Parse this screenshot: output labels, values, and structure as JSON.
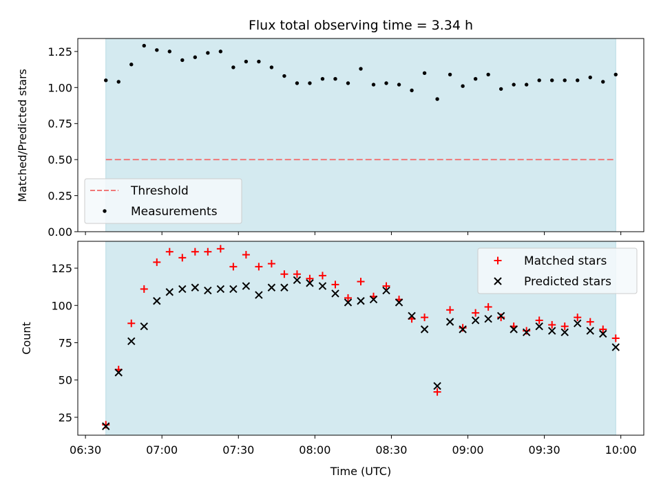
{
  "figure": {
    "title": "Flux total observing time = 3.34 h",
    "xlabel": "Time (UTC)",
    "x_ticks": [
      "06:30",
      "07:00",
      "07:30",
      "08:00",
      "08:30",
      "09:00",
      "09:30",
      "10:00"
    ]
  },
  "colors": {
    "span": "#d4eaf0",
    "threshold": "#f07878",
    "measurement": "#000000",
    "matched": "#ff0000",
    "predicted": "#000000"
  },
  "chart_data": [
    {
      "type": "scatter",
      "panel": "top",
      "title": "Flux total observing time = 3.34 h",
      "xlabel": "",
      "ylabel": "Matched/Predicted stars",
      "xlim": [
        "06:27",
        "10:09"
      ],
      "ylim": [
        0,
        1.34
      ],
      "y_ticks": [
        "0.00",
        "0.25",
        "0.50",
        "0.75",
        "1.00",
        "1.25"
      ],
      "shaded_span": [
        "06:38",
        "09:58"
      ],
      "legend_position": "lower-left",
      "threshold": {
        "name": "Threshold",
        "value": 0.5
      },
      "series": [
        {
          "name": "Measurements",
          "x": [
            "06:38",
            "06:43",
            "06:48",
            "06:53",
            "06:58",
            "07:03",
            "07:08",
            "07:13",
            "07:18",
            "07:23",
            "07:28",
            "07:33",
            "07:38",
            "07:43",
            "07:48",
            "07:53",
            "07:58",
            "08:03",
            "08:08",
            "08:13",
            "08:18",
            "08:23",
            "08:28",
            "08:33",
            "08:38",
            "08:43",
            "08:48",
            "08:53",
            "08:58",
            "09:03",
            "09:08",
            "09:13",
            "09:18",
            "09:23",
            "09:28",
            "09:33",
            "09:38",
            "09:43",
            "09:48",
            "09:53",
            "09:58"
          ],
          "y": [
            1.05,
            1.04,
            1.16,
            1.29,
            1.26,
            1.25,
            1.19,
            1.21,
            1.24,
            1.25,
            1.14,
            1.18,
            1.18,
            1.14,
            1.08,
            1.03,
            1.03,
            1.06,
            1.06,
            1.03,
            1.13,
            1.02,
            1.03,
            1.02,
            0.98,
            1.1,
            0.92,
            1.09,
            1.01,
            1.06,
            1.09,
            0.99,
            1.02,
            1.02,
            1.05,
            1.05,
            1.05,
            1.05,
            1.07,
            1.04,
            1.09
          ]
        }
      ]
    },
    {
      "type": "scatter",
      "panel": "bottom",
      "xlabel": "Time (UTC)",
      "ylabel": "Count",
      "xlim": [
        "06:27",
        "10:09"
      ],
      "ylim": [
        13,
        143
      ],
      "y_ticks": [
        "25",
        "50",
        "75",
        "100",
        "125"
      ],
      "shaded_span": [
        "06:38",
        "09:58"
      ],
      "legend_position": "upper-right",
      "series": [
        {
          "name": "Matched stars",
          "marker": "plus",
          "x": [
            "06:38",
            "06:43",
            "06:48",
            "06:53",
            "06:58",
            "07:03",
            "07:08",
            "07:13",
            "07:18",
            "07:23",
            "07:28",
            "07:33",
            "07:38",
            "07:43",
            "07:48",
            "07:53",
            "07:58",
            "08:03",
            "08:08",
            "08:13",
            "08:18",
            "08:23",
            "08:28",
            "08:33",
            "08:38",
            "08:43",
            "08:48",
            "08:53",
            "08:58",
            "09:03",
            "09:08",
            "09:13",
            "09:18",
            "09:23",
            "09:28",
            "09:33",
            "09:38",
            "09:43",
            "09:48",
            "09:53",
            "09:58"
          ],
          "y": [
            20,
            57,
            88,
            111,
            129,
            136,
            132,
            136,
            136,
            138,
            126,
            134,
            126,
            128,
            121,
            121,
            118,
            120,
            114,
            105,
            116,
            106,
            113,
            104,
            91,
            92,
            42,
            97,
            85,
            95,
            99,
            92,
            86,
            83,
            90,
            87,
            86,
            92,
            89,
            84,
            78
          ]
        },
        {
          "name": "Predicted stars",
          "marker": "x",
          "x": [
            "06:38",
            "06:43",
            "06:48",
            "06:53",
            "06:58",
            "07:03",
            "07:08",
            "07:13",
            "07:18",
            "07:23",
            "07:28",
            "07:33",
            "07:38",
            "07:43",
            "07:48",
            "07:53",
            "07:58",
            "08:03",
            "08:08",
            "08:13",
            "08:18",
            "08:23",
            "08:28",
            "08:33",
            "08:38",
            "08:43",
            "08:48",
            "08:53",
            "08:58",
            "09:03",
            "09:08",
            "09:13",
            "09:18",
            "09:23",
            "09:28",
            "09:33",
            "09:38",
            "09:43",
            "09:48",
            "09:53",
            "09:58"
          ],
          "y": [
            19,
            55,
            76,
            86,
            103,
            109,
            111,
            112,
            110,
            111,
            111,
            113,
            107,
            112,
            112,
            117,
            115,
            113,
            108,
            102,
            103,
            104,
            110,
            102,
            93,
            84,
            46,
            89,
            84,
            90,
            91,
            93,
            84,
            82,
            86,
            83,
            82,
            88,
            83,
            81,
            72
          ]
        }
      ]
    }
  ]
}
